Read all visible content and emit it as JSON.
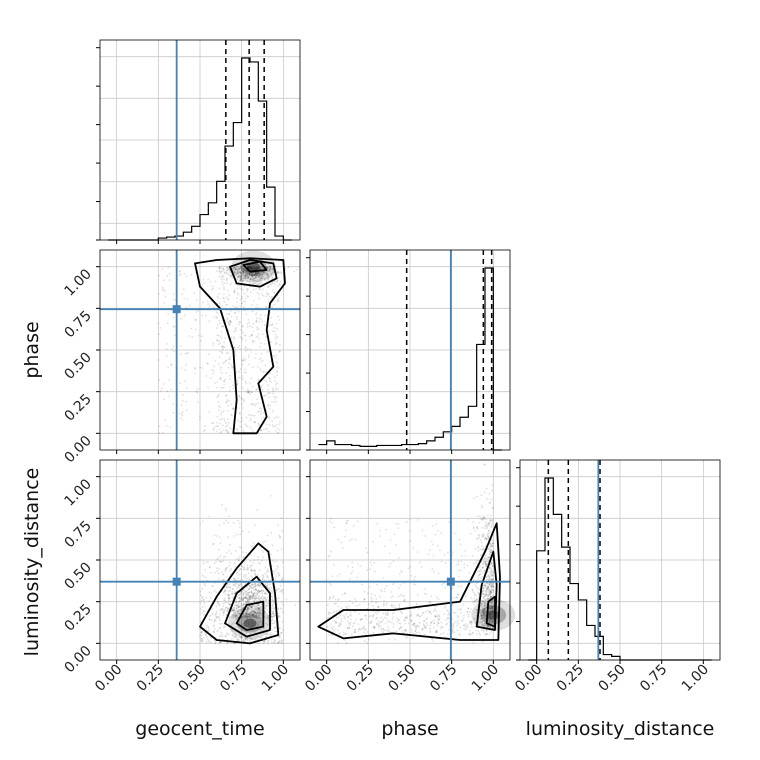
{
  "chart_data": {
    "type": "corner",
    "parameters": [
      "geocent_time",
      "phase",
      "luminosity_distance"
    ],
    "truth": {
      "geocent_time": 0.36,
      "phase": 0.745,
      "luminosity_distance": 0.37
    },
    "truth_color": "#4682b4",
    "range": [
      -0.1,
      1.1
    ],
    "ticks": [
      0.0,
      0.25,
      0.5,
      0.75,
      1.0
    ],
    "tick_labels": [
      "0.00",
      "0.25",
      "0.50",
      "0.75",
      "1.00"
    ],
    "grid": true,
    "histograms": [
      {
        "parameter": "geocent_time",
        "bins": [
          -0.05,
          0.0,
          0.05,
          0.1,
          0.15,
          0.2,
          0.25,
          0.3,
          0.35,
          0.4,
          0.45,
          0.5,
          0.55,
          0.6,
          0.65,
          0.7,
          0.75,
          0.8,
          0.85,
          0.9,
          0.95,
          1.0,
          1.05
        ],
        "counts": [
          0,
          0,
          0,
          0,
          0,
          0,
          0.01,
          0.015,
          0.02,
          0.04,
          0.07,
          0.13,
          0.19,
          0.3,
          0.48,
          0.6,
          0.93,
          0.91,
          0.71,
          0.27,
          0.02,
          0
        ],
        "quantiles": [
          0.655,
          0.795,
          0.885
        ]
      },
      {
        "parameter": "phase",
        "bins": [
          -0.05,
          0.0,
          0.05,
          0.1,
          0.15,
          0.2,
          0.25,
          0.3,
          0.35,
          0.4,
          0.45,
          0.5,
          0.55,
          0.6,
          0.65,
          0.7,
          0.75,
          0.8,
          0.85,
          0.9,
          0.95,
          1.0,
          1.05
        ],
        "counts": [
          0.03,
          0.05,
          0.03,
          0.03,
          0.025,
          0.02,
          0.02,
          0.025,
          0.025,
          0.025,
          0.03,
          0.03,
          0.035,
          0.05,
          0.07,
          0.1,
          0.13,
          0.18,
          0.24,
          0.58,
          1.0,
          0
        ],
        "quantiles": [
          0.48,
          0.94,
          0.99
        ]
      },
      {
        "parameter": "luminosity_distance",
        "bins": [
          -0.05,
          0.0,
          0.05,
          0.1,
          0.15,
          0.2,
          0.25,
          0.3,
          0.35,
          0.4,
          0.45,
          0.5,
          0.55,
          0.6,
          0.65,
          0.7,
          0.75,
          0.8,
          0.85,
          0.9,
          0.95,
          1.0,
          1.05
        ],
        "counts": [
          0,
          0.6,
          1.0,
          0.8,
          0.62,
          0.42,
          0.33,
          0.19,
          0.13,
          0.03,
          0.02,
          0.0,
          0.0,
          0.0,
          0.0,
          0.0,
          0.0,
          0.0,
          0.0,
          0.0,
          0.0,
          0.0
        ],
        "quantiles": [
          0.07,
          0.19,
          0.38
        ]
      }
    ],
    "scatter_pairs": [
      {
        "x": "geocent_time",
        "y": "phase",
        "peak": [
          0.82,
          1.0
        ]
      },
      {
        "x": "geocent_time",
        "y": "luminosity_distance",
        "peak": [
          0.8,
          0.12
        ]
      },
      {
        "x": "phase",
        "y": "luminosity_distance",
        "peak": [
          1.0,
          0.17
        ]
      }
    ]
  }
}
